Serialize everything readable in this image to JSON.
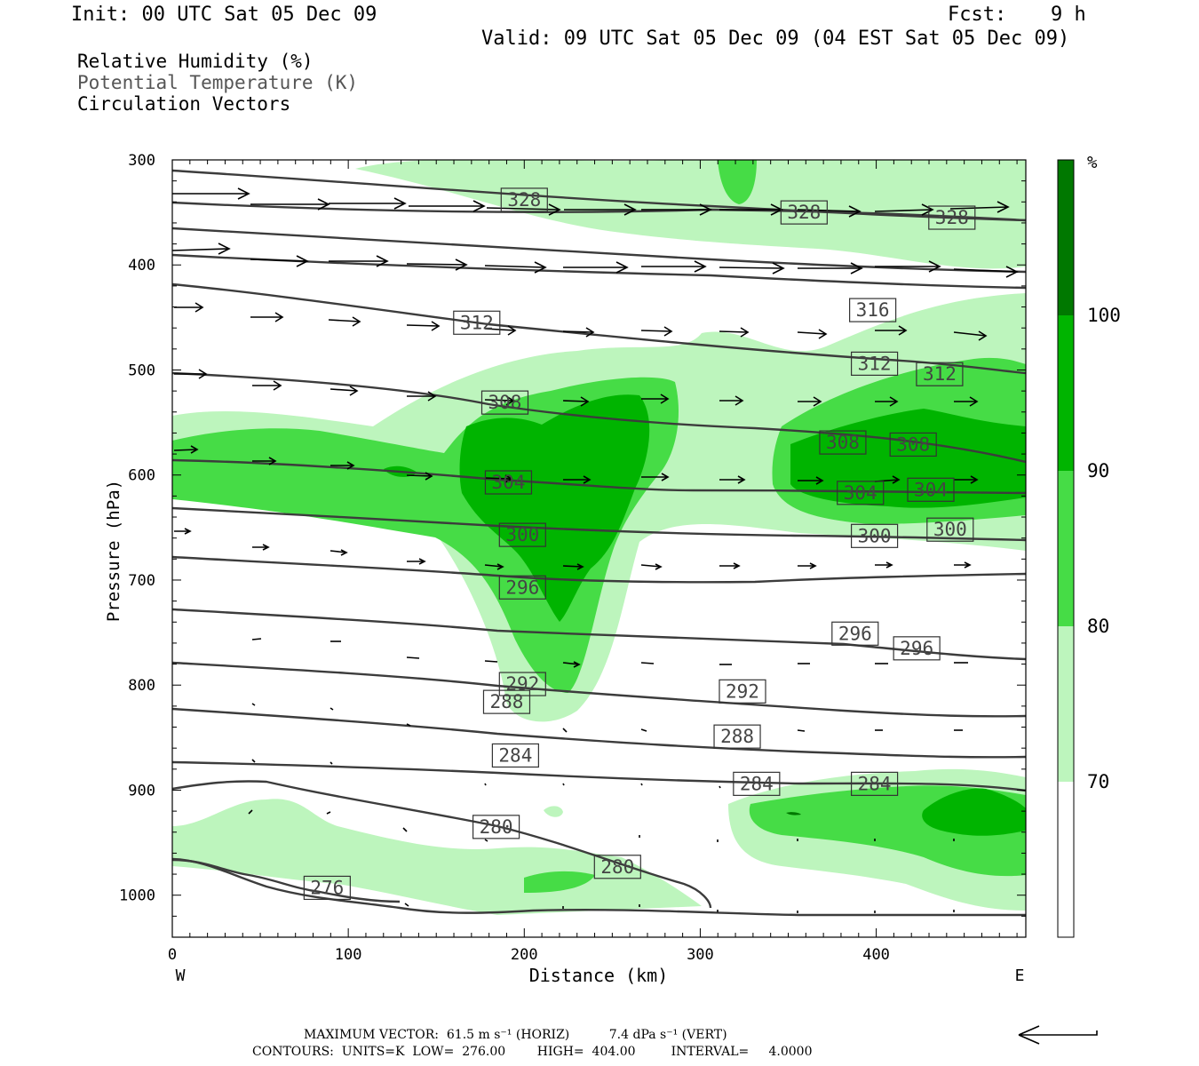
{
  "header": {
    "init": "Init: 00 UTC Sat 05 Dec 09",
    "fcst_label": "Fcst:",
    "fcst_value": "9 h",
    "valid": "Valid: 09 UTC Sat 05 Dec 09 (04 EST Sat 05 Dec 09)"
  },
  "fields": {
    "rh": "Relative Humidity (%)",
    "theta": "Potential Temperature (K)",
    "vectors": "Circulation Vectors"
  },
  "colors": {
    "rh_70_80": "#bdf5bd",
    "rh_80_90": "#46dc46",
    "rh_90_100": "#00b400",
    "rh_100": "#007800",
    "contour": "#3c3c3c"
  },
  "colorbar": {
    "unit": "%",
    "levels": [
      "100",
      "90",
      "80",
      "70"
    ]
  },
  "footer": {
    "max_vector": "MAXIMUM VECTOR:  61.5 m s⁻¹ (HORIZ)          7.4 dPa s⁻¹ (VERT)",
    "contours": "CONTOURS:  UNITS=K  LOW=  276.00        HIGH=  404.00         INTERVAL=     4.0000"
  },
  "chart_data": {
    "type": "cross-section",
    "xlabel": "Distance (km)",
    "ylabel": "Pressure (hPa)",
    "xlim": [
      0,
      485
    ],
    "ylim": [
      1040,
      300
    ],
    "x_ticks": [
      "0",
      "100",
      "200",
      "300",
      "400"
    ],
    "y_ticks": [
      "300",
      "400",
      "500",
      "600",
      "700",
      "800",
      "900",
      "1000"
    ],
    "x_end_labels": {
      "left": "W",
      "right": "E"
    },
    "theta_labels": [
      {
        "value": "328",
        "x": 200,
        "p": 338
      },
      {
        "value": "328",
        "x": 359,
        "p": 350
      },
      {
        "value": "328",
        "x": 443,
        "p": 355
      },
      {
        "value": "316",
        "x": 398,
        "p": 443
      },
      {
        "value": "312",
        "x": 173,
        "p": 455
      },
      {
        "value": "312",
        "x": 399,
        "p": 494
      },
      {
        "value": "312",
        "x": 436,
        "p": 504
      },
      {
        "value": "308",
        "x": 189,
        "p": 531
      },
      {
        "value": "308",
        "x": 381,
        "p": 569
      },
      {
        "value": "308",
        "x": 421,
        "p": 571
      },
      {
        "value": "304",
        "x": 191,
        "p": 607
      },
      {
        "value": "304",
        "x": 391,
        "p": 617
      },
      {
        "value": "304",
        "x": 431,
        "p": 614
      },
      {
        "value": "300",
        "x": 199,
        "p": 657
      },
      {
        "value": "300",
        "x": 399,
        "p": 658
      },
      {
        "value": "300",
        "x": 442,
        "p": 652
      },
      {
        "value": "296",
        "x": 199,
        "p": 707
      },
      {
        "value": "296",
        "x": 388,
        "p": 751
      },
      {
        "value": "296",
        "x": 423,
        "p": 765
      },
      {
        "value": "292",
        "x": 199,
        "p": 799
      },
      {
        "value": "292",
        "x": 324,
        "p": 806
      },
      {
        "value": "288",
        "x": 190,
        "p": 816
      },
      {
        "value": "288",
        "x": 321,
        "p": 849
      },
      {
        "value": "284",
        "x": 195,
        "p": 867
      },
      {
        "value": "284",
        "x": 332,
        "p": 894
      },
      {
        "value": "284",
        "x": 399,
        "p": 894
      },
      {
        "value": "280",
        "x": 184,
        "p": 935
      },
      {
        "value": "280",
        "x": 253,
        "p": 973
      },
      {
        "value": "276",
        "x": 88,
        "p": 993
      }
    ]
  }
}
